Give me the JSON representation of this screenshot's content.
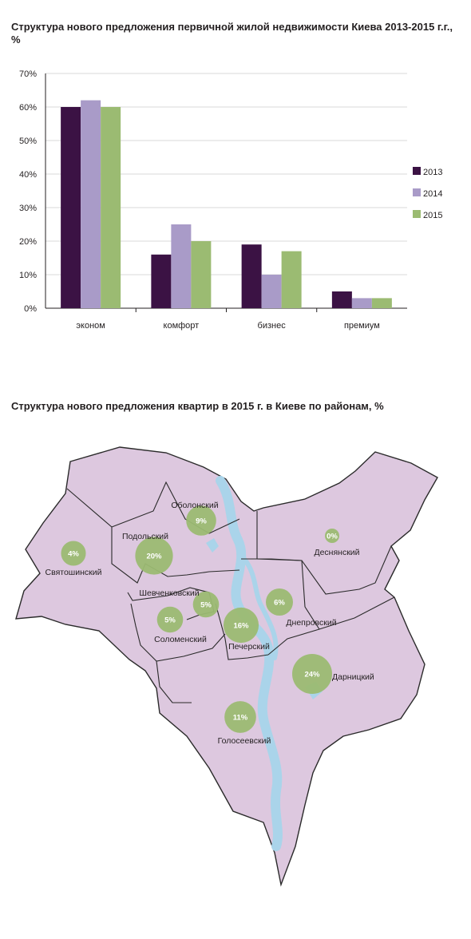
{
  "chart_data": {
    "type": "bar",
    "title": "Структура нового предложения первичной жилой недвижимости Киева 2013-2015 г.г., %",
    "categories": [
      "эконом",
      "комфорт",
      "бизнес",
      "премиум"
    ],
    "series": [
      {
        "name": "2013",
        "values": [
          60,
          16,
          19,
          5
        ],
        "color": "#3b1244"
      },
      {
        "name": "2014",
        "values": [
          62,
          25,
          10,
          3
        ],
        "color": "#a99bc8"
      },
      {
        "name": "2015",
        "values": [
          60,
          20,
          17,
          3
        ],
        "color": "#9bbb72"
      }
    ],
    "ylim": [
      0,
      70
    ],
    "yticks": [
      "0%",
      "10%",
      "20%",
      "30%",
      "40%",
      "50%",
      "60%",
      "70%"
    ],
    "grid": true,
    "legend": "right"
  },
  "map": {
    "title": "Структура нового предложения квартир в 2015 г. в Киеве по районам, %",
    "fill_color": "#ddc8df",
    "water_color": "#aad4ea",
    "bubble_color": "#9bbb72",
    "districts": [
      {
        "name": "Оболонский",
        "value": "9%",
        "share": 9
      },
      {
        "name": "Деснянский",
        "value": "0%",
        "share": 0
      },
      {
        "name": "Подольский",
        "value": "20%",
        "share": 20
      },
      {
        "name": "Святошинский",
        "value": "4%",
        "share": 4
      },
      {
        "name": "Шевченковский",
        "value": "5%",
        "share": 5
      },
      {
        "name": "Днепровский",
        "value": "6%",
        "share": 6
      },
      {
        "name": "Соломенский",
        "value": "5%",
        "share": 5
      },
      {
        "name": "Печерский",
        "value": "16%",
        "share": 16
      },
      {
        "name": "Дарницкий",
        "value": "24%",
        "share": 24
      },
      {
        "name": "Голосеевский",
        "value": "11%",
        "share": 11
      }
    ]
  }
}
